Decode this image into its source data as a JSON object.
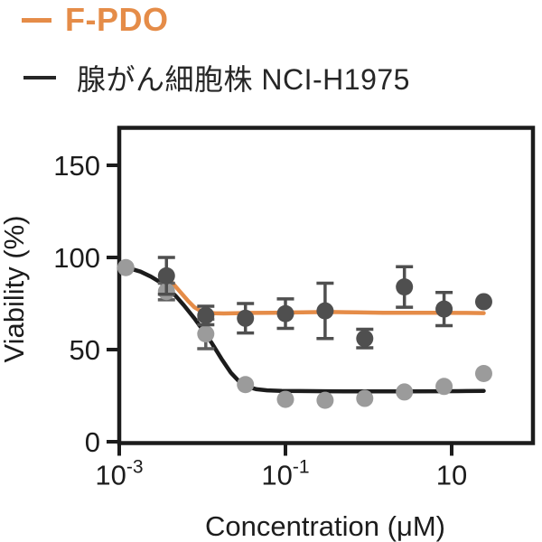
{
  "legend": {
    "items": [
      {
        "label": "F-PDO",
        "color": "#E58C48",
        "bold": true
      },
      {
        "label": "腺がん細胞株 NCI-H1975",
        "color": "#262626",
        "bold": false
      }
    ]
  },
  "chart_data": {
    "type": "scatter",
    "title": "",
    "xlabel": "Concentration (μM)",
    "ylabel": "Viability (%)",
    "x_scale": "log",
    "grid": false,
    "legend_position": "top-left",
    "x_ticks": [
      {
        "value": 0.001,
        "base": "10",
        "exp": "-3"
      },
      {
        "value": 0.1,
        "base": "10",
        "exp": "-1"
      },
      {
        "value": 10,
        "base": "10",
        "exp": ""
      }
    ],
    "y_ticks": [
      0,
      50,
      100,
      150
    ],
    "x_range_log10": [
      -3,
      1.98
    ],
    "y_range": [
      0,
      171
    ],
    "frame_color": "#1C1C1C",
    "series": [
      {
        "name": "腺がん細胞株 NCI-H1975",
        "line_color": "#1C1C1C",
        "marker_color": "#9B9B9B",
        "error_color": "#5F5F5F",
        "x": [
          0.0012,
          0.0037,
          0.011,
          0.033,
          0.1,
          0.3,
          0.9,
          2.7,
          8.1,
          24.3
        ],
        "y": [
          94.5,
          81.5,
          58.5,
          31,
          23,
          22.5,
          23.5,
          27,
          30,
          37
        ],
        "err": [
          null,
          4.5,
          8,
          null,
          null,
          null,
          null,
          null,
          null,
          null
        ],
        "fit": [
          [
            0.001,
            94.3
          ],
          [
            0.0013,
            94.2
          ],
          [
            0.0018,
            92.3
          ],
          [
            0.0024,
            89.6
          ],
          [
            0.0031,
            86.6
          ],
          [
            0.0037,
            84.0
          ],
          [
            0.0048,
            79.0
          ],
          [
            0.006,
            74.0
          ],
          [
            0.008,
            67.0
          ],
          [
            0.01,
            61.0
          ],
          [
            0.013,
            53.5
          ],
          [
            0.017,
            45.0
          ],
          [
            0.022,
            37.5
          ],
          [
            0.028,
            32.5
          ],
          [
            0.035,
            29.8
          ],
          [
            0.045,
            28.5
          ],
          [
            0.06,
            27.9
          ],
          [
            0.09,
            27.6
          ],
          [
            0.15,
            27.5
          ],
          [
            0.3,
            27.4
          ],
          [
            0.7,
            27.3
          ],
          [
            1.5,
            27.3
          ],
          [
            3,
            27.3
          ],
          [
            7,
            27.4
          ],
          [
            15,
            27.5
          ],
          [
            24.3,
            27.6
          ]
        ]
      },
      {
        "name": "F-PDO",
        "line_color": "#E58C48",
        "marker_color": "#4F4F4F",
        "error_color": "#4F4F4F",
        "x": [
          0.0037,
          0.011,
          0.033,
          0.1,
          0.3,
          0.9,
          2.7,
          8.1,
          24.3
        ],
        "y": [
          90,
          68.5,
          67,
          69.5,
          71,
          56,
          84,
          72,
          76
        ],
        "err": [
          10,
          5,
          8,
          8,
          15,
          5,
          11,
          9,
          null
        ],
        "fit": [
          [
            0.0037,
            89.5
          ],
          [
            0.0045,
            85.5
          ],
          [
            0.0055,
            81.0
          ],
          [
            0.0067,
            76.5
          ],
          [
            0.008,
            73.0
          ],
          [
            0.0095,
            71.0
          ],
          [
            0.011,
            70.2
          ],
          [
            0.014,
            69.7
          ],
          [
            0.018,
            69.6
          ],
          [
            0.025,
            69.7
          ],
          [
            0.04,
            69.9
          ],
          [
            0.07,
            70.0
          ],
          [
            0.1,
            70.1
          ],
          [
            0.2,
            70.3
          ],
          [
            0.35,
            70.4
          ],
          [
            0.7,
            70.2
          ],
          [
            1.5,
            70.0
          ],
          [
            3,
            70.0
          ],
          [
            7,
            70.0
          ],
          [
            15,
            69.9
          ],
          [
            24.3,
            69.8
          ]
        ]
      }
    ]
  }
}
